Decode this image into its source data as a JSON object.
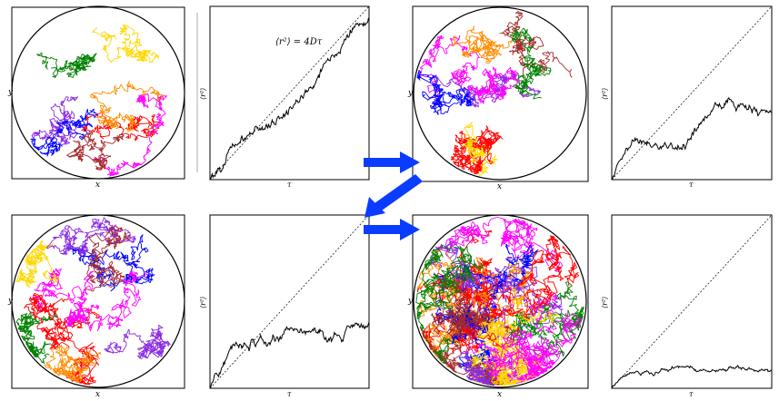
{
  "colors": {
    "walks": [
      "#ff0000",
      "#ff00ff",
      "#8a2be2",
      "#ff8c00",
      "#0000ff",
      "#a52a2a",
      "#008000",
      "#ffd700"
    ],
    "frame": "#000000",
    "arrow": "#0a3cff",
    "msd_curve": "#000000",
    "reference_line": "#000000"
  },
  "labels": {
    "x": "x",
    "y": "y",
    "tau": "τ",
    "msd": "⟨r²⟩",
    "law": "⟨r²⟩ = 4Dτ"
  },
  "panels": [
    {
      "id": "top-left",
      "density": 8,
      "cluster": "spread",
      "msd_level": "grows-with-slope"
    },
    {
      "id": "top-right",
      "density": 10,
      "cluster": "spread",
      "msd_level": "grows-sublinear"
    },
    {
      "id": "bottom-left",
      "density": 11,
      "cluster": "spread",
      "msd_level": "saturates-mid"
    },
    {
      "id": "bottom-right",
      "density": 18,
      "cluster": "dense",
      "msd_level": "saturates-low"
    }
  ],
  "arrows": [
    {
      "name": "arrow-top-right",
      "direction": "right"
    },
    {
      "name": "arrow-diagonal-down-left",
      "direction": "down-left"
    },
    {
      "name": "arrow-bottom-right",
      "direction": "right"
    }
  ]
}
